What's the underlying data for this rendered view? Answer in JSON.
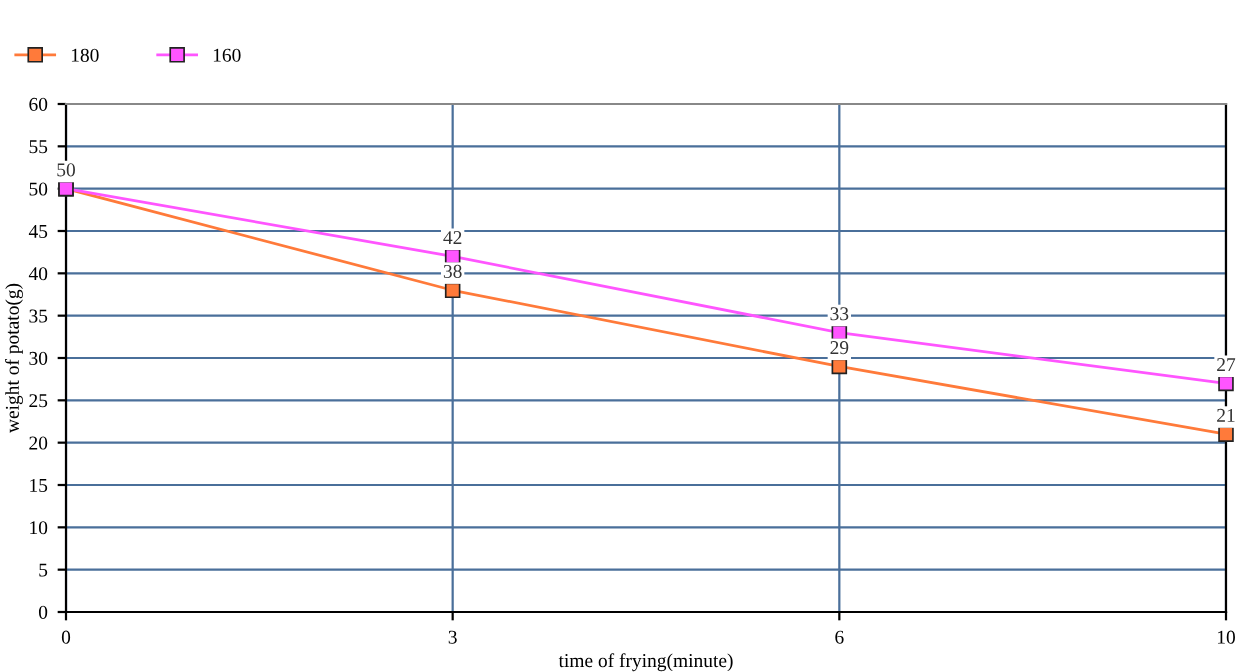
{
  "chart_data": {
    "type": "line",
    "xlabel": "time of frying(minute)",
    "ylabel": "weight of potato(g)",
    "categories": [
      "0",
      "3",
      "6",
      "10"
    ],
    "series": [
      {
        "name": "180",
        "color": "#ff7a3a",
        "values": [
          50,
          38,
          29,
          21
        ],
        "value_labels": [
          "50",
          "38",
          "29",
          "21"
        ]
      },
      {
        "name": "160",
        "color": "#ff55ff",
        "values": [
          50,
          42,
          33,
          27
        ],
        "value_labels": [
          null,
          "42",
          "33",
          "27"
        ]
      }
    ],
    "ylim": [
      0,
      60
    ],
    "yticks": [
      0,
      5,
      10,
      15,
      20,
      25,
      30,
      35,
      40,
      45,
      50,
      55,
      60
    ],
    "grid": true,
    "legend": "top left",
    "marker": "square",
    "line_style": "solid"
  }
}
